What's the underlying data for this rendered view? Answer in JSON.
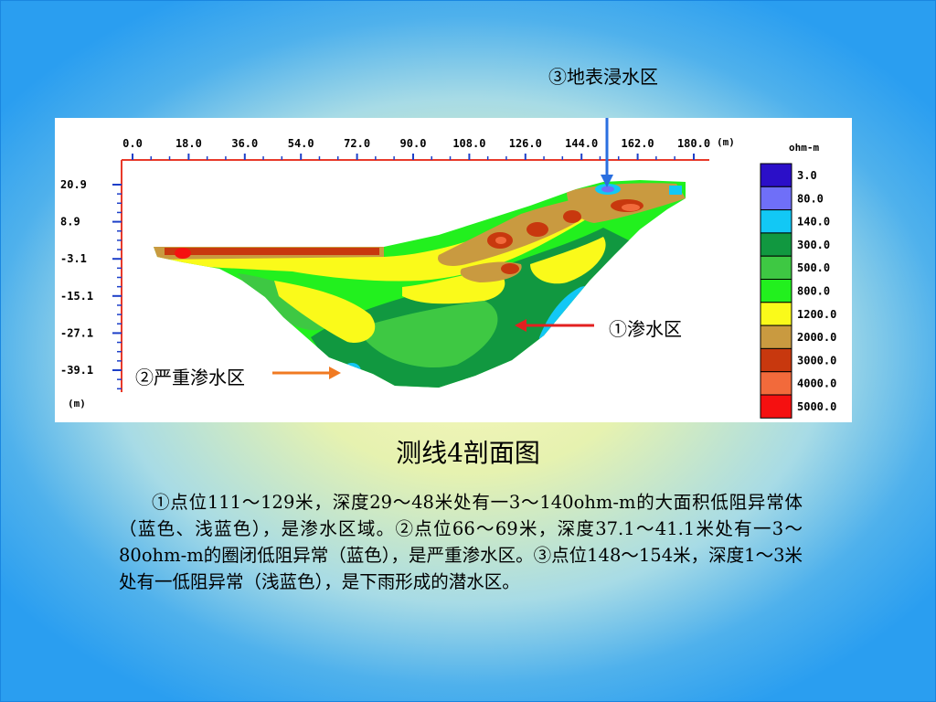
{
  "slide": {
    "figure_title": "测线4剖面图",
    "description": "①点位111～129米，深度29～48米处有一3～140ohm-m的大面积低阻异常体（蓝色、浅蓝色），是渗水区域。②点位66～69米，深度37.1～41.1米处有一3～80ohm-m的圈闭低阻异常（蓝色），是严重渗水区。③点位148～154米，深度1～3米处有一低阻异常（浅蓝色），是下雨形成的潜水区。"
  },
  "annotations": {
    "seepage": "①渗水区",
    "severe_seepage": "②严重渗水区",
    "surface_water": "③地表浸水区"
  },
  "profile": {
    "x_ticks": [
      "0.0",
      "18.0",
      "36.0",
      "54.0",
      "72.0",
      "90.0",
      "108.0",
      "126.0",
      "144.0",
      "162.0",
      "180.0"
    ],
    "x_unit": "(m)",
    "y_ticks": [
      "20.9",
      "8.9",
      "-3.1",
      "-15.1",
      "-27.1",
      "-39.1"
    ],
    "y_unit": "(m)"
  },
  "legend": {
    "title": "ohm-m",
    "items": [
      {
        "label": "3.0",
        "color": "#2b0fc8"
      },
      {
        "label": "80.0",
        "color": "#6f6ff8"
      },
      {
        "label": "140.0",
        "color": "#12c8f5"
      },
      {
        "label": "300.0",
        "color": "#119840"
      },
      {
        "label": "500.0",
        "color": "#3ec843"
      },
      {
        "label": "800.0",
        "color": "#22f01e"
      },
      {
        "label": "1200.0",
        "color": "#fafa1a"
      },
      {
        "label": "2000.0",
        "color": "#c99a40"
      },
      {
        "label": "3000.0",
        "color": "#c8380e"
      },
      {
        "label": "4000.0",
        "color": "#f26a3b"
      },
      {
        "label": "5000.0",
        "color": "#f51010"
      }
    ]
  }
}
